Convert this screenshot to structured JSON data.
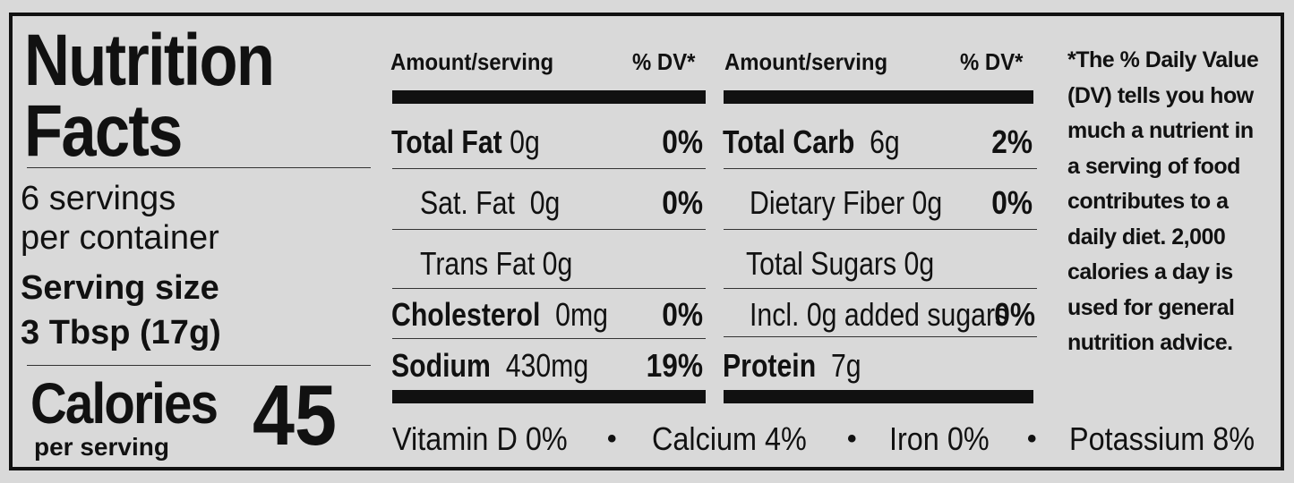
{
  "header": {
    "title_line1": "Nutrition",
    "title_line2": "Facts"
  },
  "servings": {
    "per_container_line1": "6 servings",
    "per_container_line2": "per container",
    "size_label": "Serving size",
    "size_value": "3 Tbsp (17g)"
  },
  "calories": {
    "label": "Calories",
    "sublabel": "per serving",
    "value": "45"
  },
  "left_table": {
    "amount_header": "Amount/serving",
    "dv_header": "% DV*",
    "rows": [
      {
        "name": "Total Fat",
        "amount": "0g",
        "dv": "0%"
      },
      {
        "name": "Sat. Fat",
        "amount": "0g",
        "dv": "0%"
      },
      {
        "name": "Trans Fat",
        "amount": "0g",
        "dv": ""
      },
      {
        "name": "Cholesterol",
        "amount": "0mg",
        "dv": "0%"
      },
      {
        "name": "Sodium",
        "amount": "430mg",
        "dv": "19%"
      }
    ]
  },
  "right_table": {
    "amount_header": "Amount/serving",
    "dv_header": "% DV*",
    "rows": [
      {
        "name": "Total Carb",
        "amount": "6g",
        "dv": "2%"
      },
      {
        "name": "Dietary Fiber",
        "amount": "0g",
        "dv": "0%"
      },
      {
        "name": "Total Sugars",
        "amount": "0g",
        "dv": ""
      },
      {
        "name": "Incl. 0g added sugars",
        "amount": "",
        "dv": "0%"
      },
      {
        "name": "Protein",
        "amount": "7g",
        "dv": ""
      }
    ]
  },
  "vitamins": [
    {
      "text": "Vitamin D 0%"
    },
    {
      "text": "Calcium 4%"
    },
    {
      "text": "Iron 0%"
    },
    {
      "text": "Potassium 8%"
    }
  ],
  "bullet": "•",
  "footnote": "*The % Daily Value (DV) tells you how much a nutrient in a serving of food contributes to a daily diet. 2,000 calories a day is used for general nutrition advice."
}
